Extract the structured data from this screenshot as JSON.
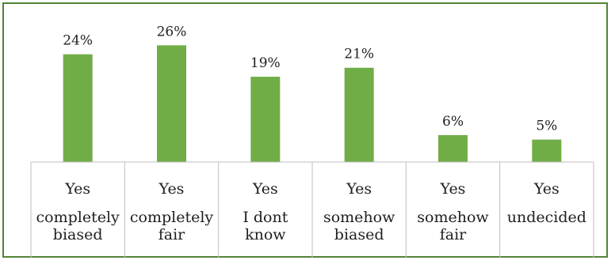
{
  "chart_data": {
    "type": "bar",
    "categories": [
      [
        "Yes",
        "completely",
        "biased"
      ],
      [
        "Yes",
        "completely",
        "fair"
      ],
      [
        "Yes",
        "I dont",
        "know"
      ],
      [
        "Yes",
        "somehow",
        "biased"
      ],
      [
        "Yes",
        "somehow",
        "fair"
      ],
      [
        "Yes",
        "undecided",
        ""
      ]
    ],
    "values": [
      24,
      26,
      19,
      21,
      6,
      5
    ],
    "data_labels": [
      "24%",
      "26%",
      "19%",
      "21%",
      "6%",
      "5%"
    ],
    "value_unit": "%",
    "ylim": [
      0,
      30
    ],
    "grid": false,
    "legend": "none",
    "colors": {
      "bar": "#70ad47",
      "frame": "#548235",
      "axis_table": "#bfbfbf",
      "text": "#1f1f1f"
    }
  }
}
